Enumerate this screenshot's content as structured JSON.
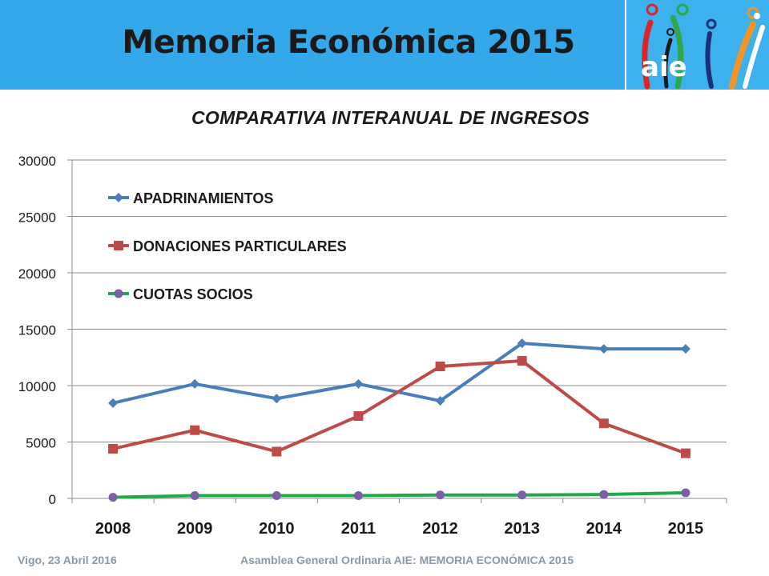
{
  "slide": {
    "title": "Memoria Económica 2015",
    "logo_text": "aie",
    "footer_left": "Vigo, 23 Abril 2016",
    "footer_right": "Asamblea General Ordinaria AIE:  MEMORIA ECONÓMICA 2015"
  },
  "colors": {
    "header": "#33a9ec",
    "apadrinamientos": "#4a7ebb",
    "donaciones": "#be4b48",
    "cuotas_line": "#1faa4a",
    "cuotas_marker": "#7b5ea6"
  },
  "chart_data": {
    "type": "line",
    "title": "COMPARATIVA INTERANUAL DE INGRESOS",
    "categories": [
      "2008",
      "2009",
      "2010",
      "2011",
      "2012",
      "2013",
      "2014",
      "2015"
    ],
    "ylim": [
      0,
      30000
    ],
    "yticks": [
      0,
      5000,
      10000,
      15000,
      20000,
      25000,
      30000
    ],
    "grid": true,
    "legend_position": "top-left",
    "series": [
      {
        "name": "APADRINAMIENTOS",
        "marker": "diamond",
        "values": [
          8450,
          10150,
          8850,
          10150,
          8650,
          13750,
          13250,
          13250
        ]
      },
      {
        "name": "DONACIONES PARTICULARES",
        "marker": "square",
        "values": [
          4400,
          6050,
          4150,
          7300,
          11700,
          12200,
          6650,
          4000
        ]
      },
      {
        "name": "CUOTAS SOCIOS",
        "marker": "circle",
        "values": [
          100,
          250,
          250,
          250,
          300,
          300,
          350,
          500
        ]
      }
    ]
  }
}
